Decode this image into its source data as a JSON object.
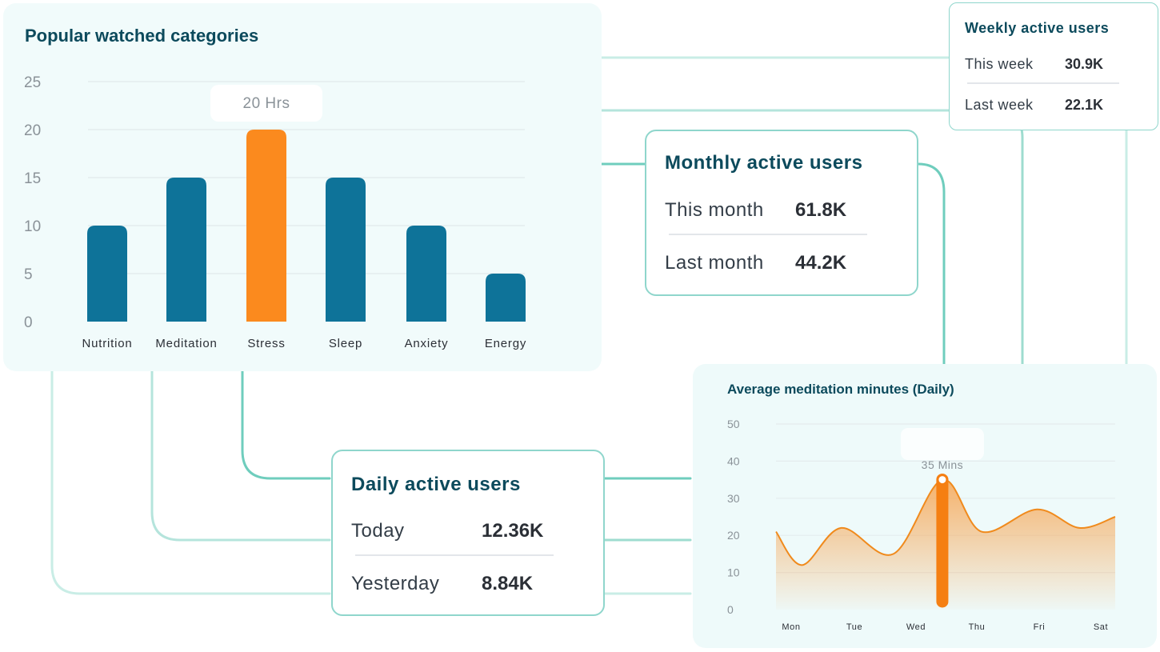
{
  "bar_chart": {
    "chart_data": {
      "type": "bar",
      "title": "Popular watched categories",
      "categories": [
        "Nutrition",
        "Meditation",
        "Stress",
        "Sleep",
        "Anxiety",
        "Energy"
      ],
      "values": [
        10,
        15,
        20,
        15,
        10,
        5
      ],
      "highlight_index": 2,
      "highlight_label": "20 Hrs",
      "yticks": [
        0,
        5,
        10,
        15,
        20,
        25
      ],
      "ylim": [
        0,
        25
      ],
      "grid": true
    },
    "colors": {
      "bar": "#0e7399",
      "highlight": "#fb8a1e",
      "grid": "#e4ecee",
      "tick": "#8a9298"
    }
  },
  "weekly": {
    "title": "Weekly active users",
    "rows": [
      {
        "label": "This week",
        "value": "30.9K"
      },
      {
        "label": "Last week",
        "value": "22.1K"
      }
    ]
  },
  "monthly": {
    "title": "Monthly active users",
    "rows": [
      {
        "label": "This month",
        "value": "61.8K"
      },
      {
        "label": "Last month",
        "value": "44.2K"
      }
    ]
  },
  "daily": {
    "title": "Daily active users",
    "rows": [
      {
        "label": "Today",
        "value": "12.36K"
      },
      {
        "label": "Yesterday",
        "value": "8.84K"
      }
    ]
  },
  "line_chart": {
    "chart_data": {
      "type": "area",
      "title": "Average meditation minutes (Daily)",
      "categories": [
        "Mon",
        "Tue",
        "Wed",
        "Thu",
        "Fri",
        "Sat"
      ],
      "points": [
        {
          "x": 0.0,
          "y": 21
        },
        {
          "x": 0.4,
          "y": 12
        },
        {
          "x": 1.0,
          "y": 22
        },
        {
          "x": 1.8,
          "y": 15
        },
        {
          "x": 2.55,
          "y": 35
        },
        {
          "x": 3.15,
          "y": 21
        },
        {
          "x": 4.0,
          "y": 27
        },
        {
          "x": 4.65,
          "y": 22
        },
        {
          "x": 5.2,
          "y": 25
        }
      ],
      "highlight_index": 4,
      "highlight_label": "35 Mins",
      "yticks": [
        0,
        10,
        20,
        30,
        40,
        50
      ],
      "ylim": [
        0,
        50
      ],
      "grid": true
    },
    "colors": {
      "line": "#f08a1c",
      "fill": "#f7a552",
      "marker": "#f57f12",
      "grid": "#e4ecee",
      "tick": "#8a9298"
    }
  }
}
